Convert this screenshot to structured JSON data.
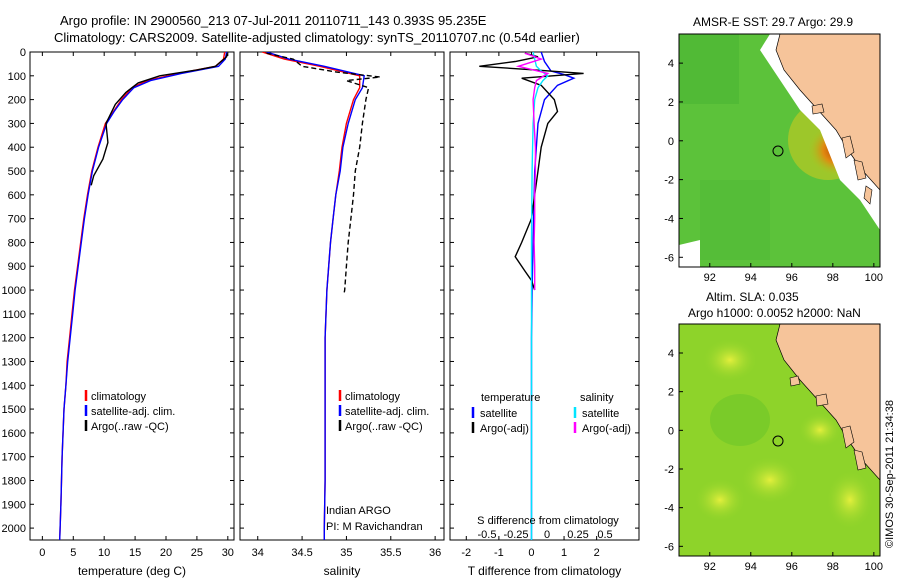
{
  "header": {
    "line1": "Argo profile: IN 2900560_213 07-Jul-2011 20110711_143 0.393S 95.235E",
    "line2": "Climatology: CARS2009. Satellite-adjusted climatology: synTS_20110707.nc (0.54d earlier)"
  },
  "maps": {
    "sst_title": "AMSR-E SST: 29.7 Argo: 29.9",
    "sla_title1": "Altim. SLA: 0.035",
    "sla_title2": "Argo h1000: 0.0052 h2000: NaN",
    "credit": "©IMOS 30-Sep-2011 21:34:38",
    "xticks": [
      "92",
      "94",
      "96",
      "98",
      "100"
    ],
    "yticks": [
      "4",
      "2",
      "0",
      "-2",
      "-4",
      "-6"
    ],
    "argo_lon": 95.235,
    "argo_lat": -0.393,
    "colors": {
      "sea": "#5cc23a",
      "land": "#f6c49a",
      "nodata": "#ffffff",
      "warm": "#cc4400"
    }
  },
  "chart_data": [
    {
      "type": "line",
      "name": "temperature",
      "xlabel": "temperature (deg C)",
      "ylabel": "",
      "xlim": [
        -2,
        31
      ],
      "ylim": [
        2050,
        0
      ],
      "xticks": [
        "0",
        "5",
        "10",
        "15",
        "20",
        "25",
        "30"
      ],
      "yticks": [
        "0",
        "100",
        "200",
        "300",
        "400",
        "500",
        "600",
        "700",
        "800",
        "900",
        "1000",
        "1100",
        "1200",
        "1300",
        "1400",
        "1500",
        "1600",
        "1700",
        "1800",
        "1900",
        "2000"
      ],
      "legend": [
        "climatology",
        "satellite-adj. clim.",
        "Argo(..raw -QC)"
      ],
      "series": [
        {
          "name": "climatology",
          "color": "#ff0000",
          "x": [
            29.5,
            29.3,
            28.0,
            22.0,
            17.0,
            14.5,
            12.8,
            11.5,
            10.2,
            9.0,
            8.0,
            7.3,
            6.7,
            6.2,
            5.7,
            5.2,
            4.8,
            4.4,
            4.0,
            3.8,
            3.5,
            3.2,
            3.0,
            2.8
          ],
          "y": [
            0,
            30,
            60,
            90,
            120,
            150,
            200,
            250,
            300,
            400,
            500,
            600,
            700,
            800,
            900,
            1000,
            1100,
            1200,
            1300,
            1400,
            1500,
            1700,
            1900,
            2050
          ]
        },
        {
          "name": "satellite-adj. clim.",
          "color": "#0000ff",
          "x": [
            29.8,
            29.6,
            28.5,
            22.5,
            17.5,
            14.8,
            13.0,
            11.6,
            10.4,
            9.1,
            8.1,
            7.4,
            6.8,
            6.3,
            5.8,
            5.3,
            4.9,
            4.5,
            4.1,
            3.8,
            3.5,
            3.2,
            3.0,
            2.8
          ],
          "y": [
            0,
            30,
            60,
            90,
            120,
            150,
            200,
            250,
            300,
            400,
            500,
            600,
            700,
            800,
            900,
            1000,
            1100,
            1200,
            1300,
            1400,
            1500,
            1700,
            1900,
            2050
          ]
        },
        {
          "name": "Argo(..raw -QC)",
          "color": "#000000",
          "x": [
            29.9,
            29.8,
            28.0,
            25.0,
            19.0,
            15.5,
            13.5,
            11.8,
            10.3,
            10.6,
            9.8,
            8.3,
            7.9
          ],
          "y": [
            5,
            20,
            60,
            75,
            100,
            130,
            170,
            220,
            300,
            380,
            450,
            520,
            560
          ]
        }
      ]
    },
    {
      "type": "line",
      "name": "salinity",
      "xlabel": "salinity",
      "ylabel": "",
      "xlim": [
        33.8,
        36.1
      ],
      "ylim": [
        2050,
        0
      ],
      "xticks": [
        "34",
        "34.5",
        "35",
        "35.5",
        "36"
      ],
      "legend": [
        "climatology",
        "satellite-adj. clim.",
        "Argo(..raw -QC)"
      ],
      "annotations": [
        "Indian ARGO",
        "PI: M Ravichandran"
      ],
      "series": [
        {
          "name": "climatology",
          "color": "#ff0000",
          "x": [
            34.05,
            34.3,
            34.7,
            35.15,
            35.15,
            35.08,
            35.0,
            34.95,
            34.92,
            34.88,
            34.85,
            34.82,
            34.8,
            34.78,
            34.77,
            34.76,
            34.76,
            34.76,
            34.76,
            34.75,
            34.75
          ],
          "y": [
            0,
            30,
            60,
            100,
            150,
            200,
            300,
            400,
            500,
            600,
            700,
            800,
            900,
            1000,
            1100,
            1200,
            1400,
            1600,
            1800,
            2000,
            2050
          ]
        },
        {
          "name": "satellite-adj. clim.",
          "color": "#0000ff",
          "x": [
            34.1,
            34.35,
            34.75,
            35.2,
            35.18,
            35.1,
            35.02,
            34.96,
            34.93,
            34.88,
            34.85,
            34.82,
            34.8,
            34.78,
            34.77,
            34.76,
            34.76,
            34.76,
            34.76,
            34.75,
            34.75
          ],
          "y": [
            0,
            30,
            60,
            100,
            150,
            200,
            300,
            400,
            500,
            600,
            700,
            800,
            900,
            1000,
            1100,
            1200,
            1400,
            1600,
            1800,
            2000,
            2050
          ]
        },
        {
          "name": "Argo(..raw -QC)",
          "color": "#000000",
          "x": [
            34.1,
            34.4,
            34.5,
            34.9,
            35.38,
            35.0,
            35.25,
            35.22,
            35.18,
            35.15,
            35.1,
            35.08,
            35.05,
            35.02,
            35.0,
            34.98,
            34.97
          ],
          "y": [
            5,
            30,
            60,
            85,
            105,
            120,
            150,
            200,
            300,
            400,
            500,
            600,
            700,
            800,
            900,
            1000,
            1020
          ]
        }
      ]
    },
    {
      "type": "line",
      "name": "difference",
      "xlabel": "T difference from climatology",
      "x2label": "S difference from climatology",
      "xlim": [
        -2.5,
        3.3
      ],
      "ylim": [
        2050,
        0
      ],
      "xticks": [
        "-2",
        "-1",
        "0",
        "1",
        "2"
      ],
      "x2ticks": [
        "-0.5",
        "-0.25",
        "0",
        "0.25",
        "0.5"
      ],
      "legend_headers": [
        "temperature",
        "salinity"
      ],
      "legend": [
        "satellite",
        "Argo(-adj)",
        "satellite",
        "Argo(-adj)"
      ],
      "series": [
        {
          "name": "satellite",
          "group": "temperature",
          "color": "#0000ff",
          "x": [
            0.3,
            0.4,
            0.6,
            1.0,
            1.3,
            0.8,
            0.4,
            0.2,
            0.1,
            0.05,
            0.02,
            0.0,
            0.0,
            0.0
          ],
          "y": [
            0,
            40,
            80,
            95,
            110,
            140,
            200,
            300,
            500,
            800,
            1000,
            1200,
            1600,
            2050
          ]
        },
        {
          "name": "Argo(-adj)",
          "group": "temperature",
          "color": "#000000",
          "x": [
            -0.2,
            0.2,
            -0.5,
            -1.6,
            0.1,
            1.6,
            -0.3,
            0.3,
            0.5,
            0.7,
            0.8,
            0.5,
            0.3,
            0.2,
            0.1,
            0.0,
            -0.3,
            -0.5,
            -0.2,
            0.0,
            0.1
          ],
          "y": [
            5,
            20,
            40,
            60,
            75,
            90,
            110,
            140,
            170,
            200,
            250,
            300,
            400,
            500,
            600,
            700,
            800,
            860,
            920,
            960,
            1000
          ]
        },
        {
          "name": "satellite",
          "group": "salinity",
          "color": "#00e5ff",
          "x": [
            0.05,
            0.1,
            0.15,
            0.3,
            0.5,
            0.35,
            0.2,
            0.1,
            0.05,
            0.02,
            0.0,
            0.0,
            0.0,
            0.0
          ],
          "y": [
            0,
            30,
            60,
            80,
            100,
            120,
            150,
            200,
            300,
            500,
            800,
            1200,
            1600,
            2050
          ]
        },
        {
          "name": "Argo(-adj)",
          "group": "salinity",
          "color": "#ff00ff",
          "x": [
            -0.2,
            0.3,
            -0.4,
            0.5,
            0.15,
            0.1,
            0.05,
            0.08,
            0.12,
            0.12,
            0.1,
            0.1,
            0.08,
            0.1,
            0.1
          ],
          "y": [
            5,
            30,
            60,
            90,
            120,
            150,
            200,
            300,
            400,
            500,
            600,
            700,
            800,
            900,
            1000
          ]
        }
      ]
    }
  ]
}
